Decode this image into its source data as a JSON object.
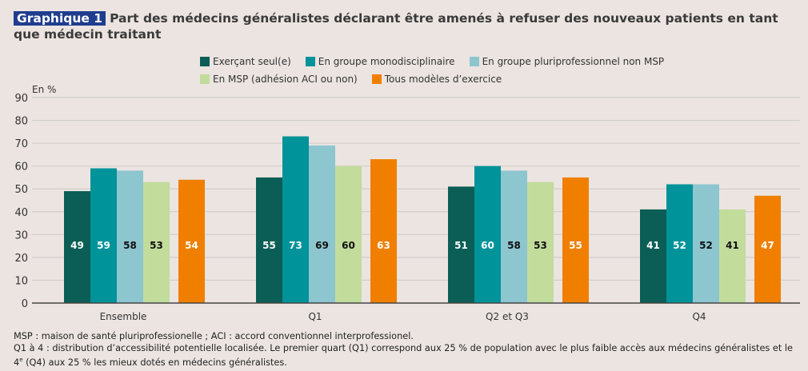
{
  "title": {
    "tag": "Graphique 1",
    "text": "Part des médecins généralistes déclarant être amenés à refuser des nouveaux patients en tant que médecin traitant"
  },
  "notes": {
    "line1": "MSP : maison de santé pluriprofessionelle ; ACI : accord conventionnel interprofessionel.",
    "line2_part1": "Q1 à 4 : distribution d’accessibilité potentielle localisée. Le premier quart (Q1) correspond aux 25 % de population avec le plus faible accès aux médecins généralistes et le 4",
    "line2_sup": "e",
    "line2_part2": " (Q4) aux 25 % les mieux dotés en médecins généralistes."
  },
  "chart_data": {
    "type": "bar",
    "title": "Part des médecins généralistes déclarant être amenés à refuser des nouveaux patients en tant que médecin traitant",
    "ylabel": "En %",
    "xlabel": "",
    "ylim": [
      0,
      90
    ],
    "yticks": [
      0,
      10,
      20,
      30,
      40,
      50,
      60,
      70,
      80,
      90
    ],
    "grid": true,
    "legend_position": "top",
    "categories": [
      "Ensemble",
      "Q1",
      "Q2 et Q3",
      "Q4"
    ],
    "series": [
      {
        "name": "Exerçant seul(e)",
        "color": "#0b5e55",
        "label_color": "#ffffff",
        "values": [
          49,
          55,
          51,
          41
        ]
      },
      {
        "name": "En groupe monodisciplinaire",
        "color": "#00939a",
        "label_color": "#ffffff",
        "values": [
          59,
          73,
          60,
          52
        ]
      },
      {
        "name": "En groupe pluriprofessionnel non MSP",
        "color": "#8dc6cf",
        "label_color": "#111111",
        "values": [
          58,
          69,
          58,
          52
        ]
      },
      {
        "name": "En MSP (adhésion ACI ou non)",
        "color": "#c2dc9c",
        "label_color": "#111111",
        "values": [
          53,
          60,
          53,
          41
        ]
      },
      {
        "name": "Tous modèles d’exercice",
        "color": "#f07f00",
        "label_color": "#ffffff",
        "values": [
          54,
          63,
          55,
          47
        ]
      }
    ]
  }
}
